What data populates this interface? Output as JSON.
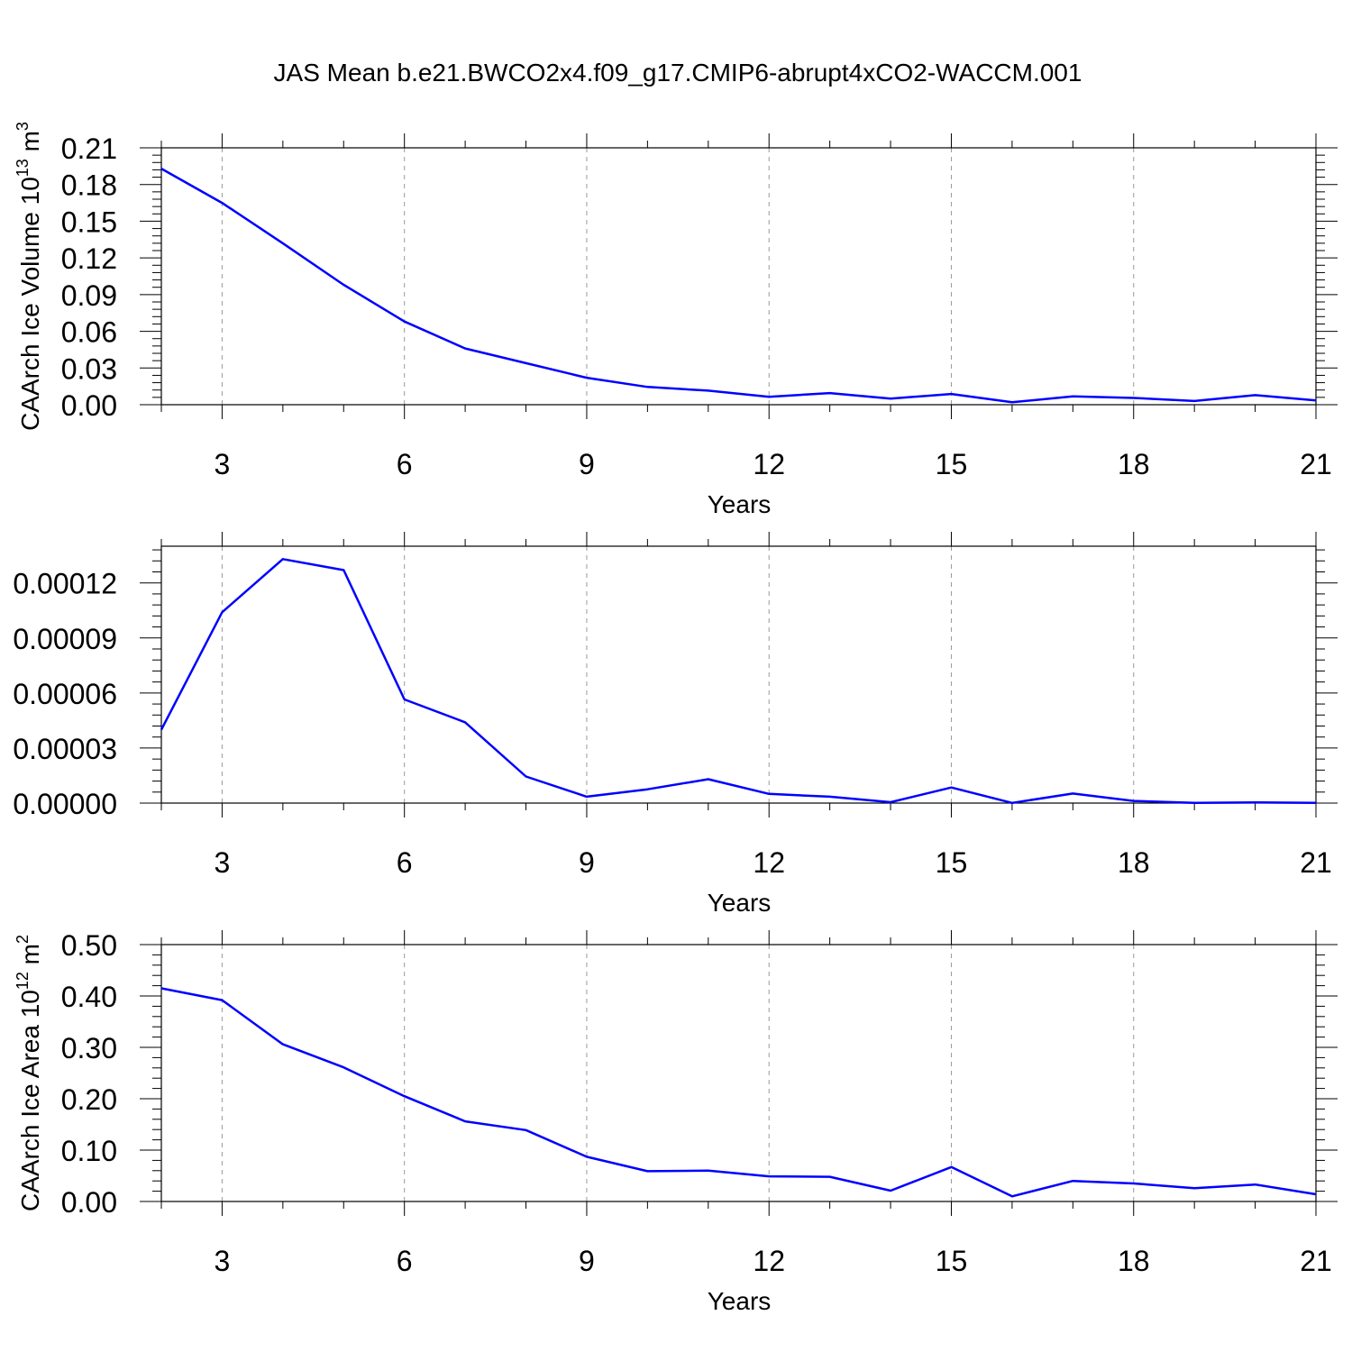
{
  "title": "JAS Mean b.e21.BWCO2x4.f09_g17.CMIP6-abrupt4xCO2-WACCM.001",
  "colors": {
    "line": "#0000ff",
    "axis": "#000000",
    "grid": "#999999"
  },
  "chart_data": [
    {
      "type": "line",
      "xlabel": "Years",
      "ylabel": {
        "main": "CAArch Ice Volume 10",
        "exp": "13",
        "unit": " m",
        "unit_exp": "3"
      },
      "xlim": [
        2,
        21
      ],
      "ylim": [
        0,
        0.21
      ],
      "x_ticks": [
        3,
        6,
        9,
        12,
        15,
        18,
        21
      ],
      "y_ticks": [
        "0.00",
        "0.03",
        "0.06",
        "0.09",
        "0.12",
        "0.15",
        "0.18",
        "0.21"
      ],
      "grid": "vertical-dashed",
      "series": [
        {
          "x": [
            2,
            3,
            4,
            5,
            6,
            7,
            8,
            9,
            10,
            11,
            12,
            13,
            14,
            15,
            16,
            17,
            18,
            19,
            20,
            21
          ],
          "values": [
            0.193,
            0.165,
            0.132,
            0.098,
            0.068,
            0.046,
            0.034,
            0.022,
            0.0145,
            0.0115,
            0.0065,
            0.0095,
            0.005,
            0.0088,
            0.002,
            0.0068,
            0.0055,
            0.003,
            0.0078,
            0.0035
          ]
        }
      ]
    },
    {
      "type": "line",
      "xlabel": "Years",
      "ylabel": null,
      "xlim": [
        2,
        21
      ],
      "ylim": [
        0,
        0.00014
      ],
      "x_ticks": [
        3,
        6,
        9,
        12,
        15,
        18,
        21
      ],
      "y_ticks": [
        "0.00000",
        "0.00003",
        "0.00006",
        "0.00009",
        "0.00012"
      ],
      "grid": "vertical-dashed",
      "series": [
        {
          "x": [
            2,
            3,
            4,
            5,
            6,
            7,
            8,
            9,
            10,
            11,
            12,
            13,
            14,
            15,
            16,
            17,
            18,
            19,
            20,
            21
          ],
          "values": [
            4e-05,
            0.000104,
            0.000133,
            0.000127,
            5.65e-05,
            4.4e-05,
            1.45e-05,
            3.5e-06,
            7.5e-06,
            1.3e-05,
            5e-06,
            3.5e-06,
            5e-07,
            8.5e-06,
            1e-07,
            5.2e-06,
            1.2e-06,
            1e-07,
            4e-07,
            1e-07
          ]
        }
      ]
    },
    {
      "type": "line",
      "xlabel": "Years",
      "ylabel": {
        "main": "CAArch Ice Area 10",
        "exp": "12",
        "unit": " m",
        "unit_exp": "2"
      },
      "xlim": [
        2,
        21
      ],
      "ylim": [
        0,
        0.5
      ],
      "x_ticks": [
        3,
        6,
        9,
        12,
        15,
        18,
        21
      ],
      "y_ticks": [
        "0.00",
        "0.10",
        "0.20",
        "0.30",
        "0.40",
        "0.50"
      ],
      "grid": "vertical-dashed",
      "series": [
        {
          "x": [
            2,
            3,
            4,
            5,
            6,
            7,
            8,
            9,
            10,
            11,
            12,
            13,
            14,
            15,
            16,
            17,
            18,
            19,
            20,
            21
          ],
          "values": [
            0.415,
            0.392,
            0.306,
            0.261,
            0.205,
            0.156,
            0.139,
            0.087,
            0.059,
            0.06,
            0.049,
            0.048,
            0.021,
            0.067,
            0.01,
            0.04,
            0.035,
            0.026,
            0.033,
            0.014
          ]
        }
      ]
    }
  ]
}
